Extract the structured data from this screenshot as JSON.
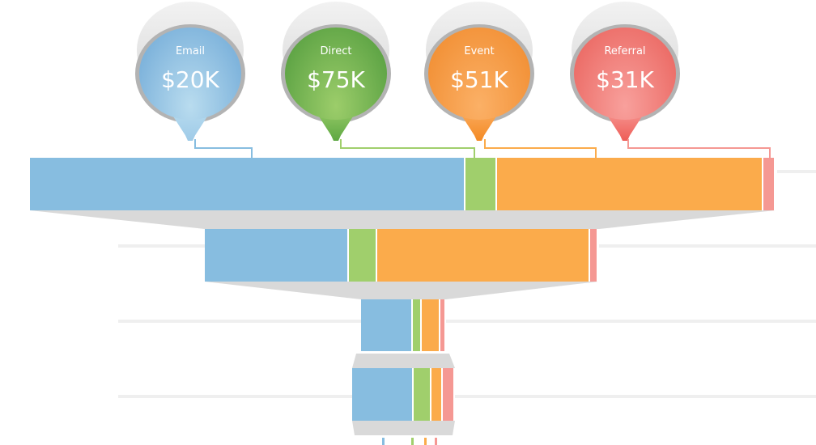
{
  "colors": {
    "email": "#87bde0",
    "direct": "#a0cf6c",
    "event": "#fbab4b",
    "referral": "#f59893",
    "funnel_gray": "#d9d9d9"
  },
  "bubbles": [
    {
      "key": "email",
      "label": "Email",
      "value": "$20K",
      "top": "#6ea8d6",
      "bottom": "#b9dcef",
      "tip": "#9fcbe8",
      "line": "#87bde0"
    },
    {
      "key": "direct",
      "label": "Direct",
      "value": "$75K",
      "top": "#4f9a3c",
      "bottom": "#9ccd6a",
      "tip": "#5ea843",
      "line": "#a0cf6c"
    },
    {
      "key": "event",
      "label": "Event",
      "value": "$51K",
      "top": "#f08a2c",
      "bottom": "#fbb066",
      "tip": "#f48a24",
      "line": "#fbab4b"
    },
    {
      "key": "referral",
      "label": "Referral",
      "value": "$31K",
      "top": "#e9605a",
      "bottom": "#f8a09c",
      "tip": "#ee5d57",
      "line": "#f59893"
    }
  ],
  "chart_data": {
    "type": "funnel",
    "series": [
      "Email",
      "Direct",
      "Event",
      "Referral"
    ],
    "stages": [
      {
        "relative_size": 100,
        "shares_pct": [
          58.1,
          4.2,
          35.5,
          1.6
        ]
      },
      {
        "relative_size": 52.8,
        "shares_pct": [
          36.2,
          7.3,
          53.5,
          2.1
        ]
      },
      {
        "relative_size": 11.4,
        "shares_pct": [
          58,
          10,
          21,
          6
        ]
      },
      {
        "relative_size": 13.8,
        "shares_pct": [
          57.5,
          16.5,
          10.5,
          11
        ]
      }
    ]
  }
}
